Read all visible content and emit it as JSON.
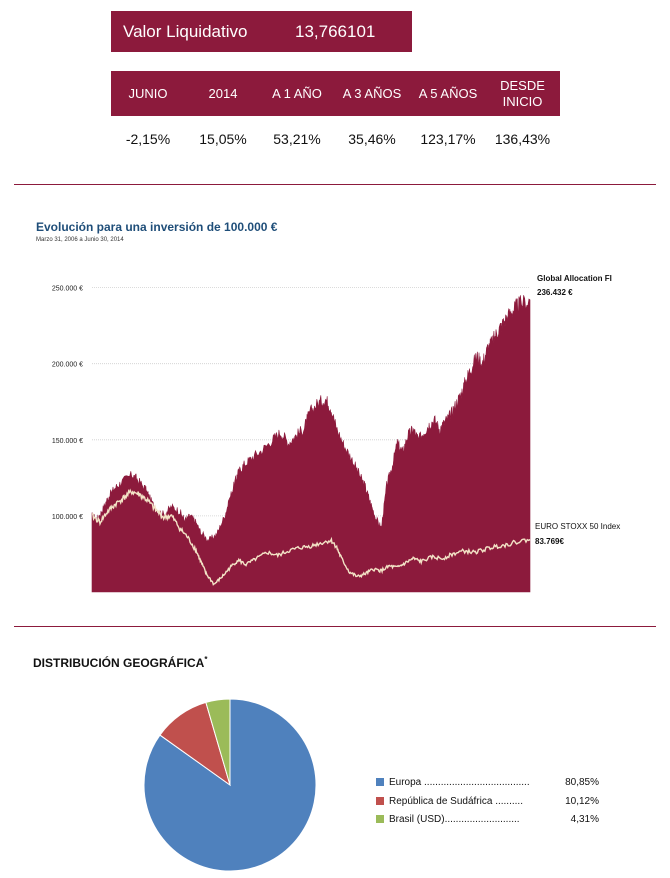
{
  "nav": {
    "label": "Valor Liquidativo",
    "value": "13,766101"
  },
  "performance": {
    "headers": [
      "JUNIO",
      "2014",
      "A 1 AÑO",
      "A 3 AÑOS",
      "A 5 AÑOS",
      "DESDE INICIO"
    ],
    "values": [
      "-2,15%",
      "15,05%",
      "53,21%",
      "35,46%",
      "123,17%",
      "136,43%"
    ]
  },
  "colors": {
    "brand": "#8c1a3c",
    "title_blue": "#1f4e79",
    "pie_europa": "#4f81bd",
    "pie_sudafrica": "#c0504d",
    "pie_brasil": "#9bbb59"
  },
  "chart_data": [
    {
      "type": "area",
      "title": "Evolución para una inversión de 100.000 €",
      "subtitle": "Marzo 31, 2006 a Junio 30, 2014",
      "x_range": [
        "2006-03-31",
        "2014-06-30"
      ],
      "y_ticks": [
        "100.000 €",
        "150.000 €",
        "200.000 €",
        "250.000 €"
      ],
      "y_tick_values": [
        100000,
        150000,
        200000,
        250000
      ],
      "ylim": [
        50000,
        255000
      ],
      "grid": true,
      "series": [
        {
          "name": "Global Allocation FI",
          "final_label": "236.432 €",
          "style": "filled-area",
          "x": [
            0.0,
            0.1,
            0.2,
            0.3,
            0.42,
            0.55,
            0.75,
            0.85,
            1.0,
            1.08,
            1.2,
            1.35,
            1.5,
            1.65,
            1.75,
            1.85,
            1.95,
            2.05,
            2.2,
            2.35,
            2.5,
            2.6,
            2.7,
            2.75,
            2.85,
            3.0,
            3.2,
            3.4,
            3.55,
            3.7,
            3.85,
            4.0,
            4.1,
            4.25,
            4.4,
            4.5,
            4.6,
            4.75,
            4.9,
            5.05,
            5.15,
            5.25,
            5.35,
            5.45,
            5.55,
            5.65,
            5.75,
            5.85,
            5.95,
            6.05,
            6.15,
            6.25,
            6.35,
            6.45,
            6.55,
            6.65,
            6.75,
            6.85,
            6.95,
            7.05,
            7.15,
            7.25,
            7.35,
            7.45,
            7.55,
            7.65,
            7.75,
            7.85,
            7.95,
            8.05,
            8.25
          ],
          "values": [
            100000,
            98000,
            104000,
            112000,
            118000,
            122000,
            127000,
            124000,
            118000,
            112000,
            104000,
            101000,
            106000,
            103000,
            97000,
            100000,
            96000,
            89000,
            84000,
            88000,
            100000,
            112000,
            123000,
            128000,
            133000,
            138000,
            143000,
            150000,
            155000,
            148000,
            153000,
            158000,
            168000,
            174000,
            177000,
            171000,
            158000,
            146000,
            137000,
            126000,
            119000,
            108000,
            98000,
            92000,
            120000,
            132000,
            148000,
            142000,
            153000,
            157000,
            150000,
            155000,
            160000,
            163000,
            157000,
            162000,
            166000,
            173000,
            180000,
            190000,
            198000,
            205000,
            200000,
            210000,
            215000,
            222000,
            227000,
            232000,
            236000,
            239000,
            242000
          ]
        },
        {
          "name": "EURO STOXX 50 Index",
          "final_label": "83.769€",
          "style": "line",
          "x": [
            0.0,
            0.15,
            0.3,
            0.45,
            0.6,
            0.75,
            0.9,
            1.05,
            1.2,
            1.35,
            1.5,
            1.65,
            1.8,
            1.95,
            2.05,
            2.15,
            2.3,
            2.45,
            2.6,
            2.75,
            2.9,
            3.1,
            3.3,
            3.5,
            3.7,
            3.9,
            4.1,
            4.3,
            4.5,
            4.6,
            4.7,
            4.85,
            5.0,
            5.15,
            5.3,
            5.45,
            5.6,
            5.75,
            5.9,
            6.05,
            6.2,
            6.4,
            6.6,
            6.8,
            7.0,
            7.2,
            7.4,
            7.6,
            7.8,
            8.0,
            8.25
          ],
          "values": [
            100000,
            96000,
            103000,
            108000,
            112000,
            116000,
            114000,
            110000,
            104000,
            99000,
            100000,
            92000,
            86000,
            78000,
            70000,
            62000,
            55000,
            60000,
            66000,
            71000,
            68000,
            72000,
            76000,
            74000,
            77000,
            79000,
            80000,
            82000,
            84000,
            80000,
            72000,
            63000,
            60000,
            62000,
            65000,
            64000,
            67000,
            66000,
            69000,
            72000,
            70000,
            73000,
            72000,
            75000,
            77000,
            76000,
            78000,
            80000,
            81000,
            83000,
            84500
          ]
        }
      ]
    },
    {
      "type": "pie",
      "title": "DISTRIBUCIÓN GEOGRÁFICA",
      "title_mark": "*",
      "slices": [
        {
          "label": "Europa",
          "dots": "......................................",
          "value": 80.85,
          "value_text": "80,85%"
        },
        {
          "label": "República de Sudáfrica",
          "dots": "..........",
          "value": 10.12,
          "value_text": "10,12%"
        },
        {
          "label": "Brasil (USD)",
          "dots": "...........................",
          "value": 4.31,
          "value_text": "4,31%"
        }
      ]
    }
  ]
}
